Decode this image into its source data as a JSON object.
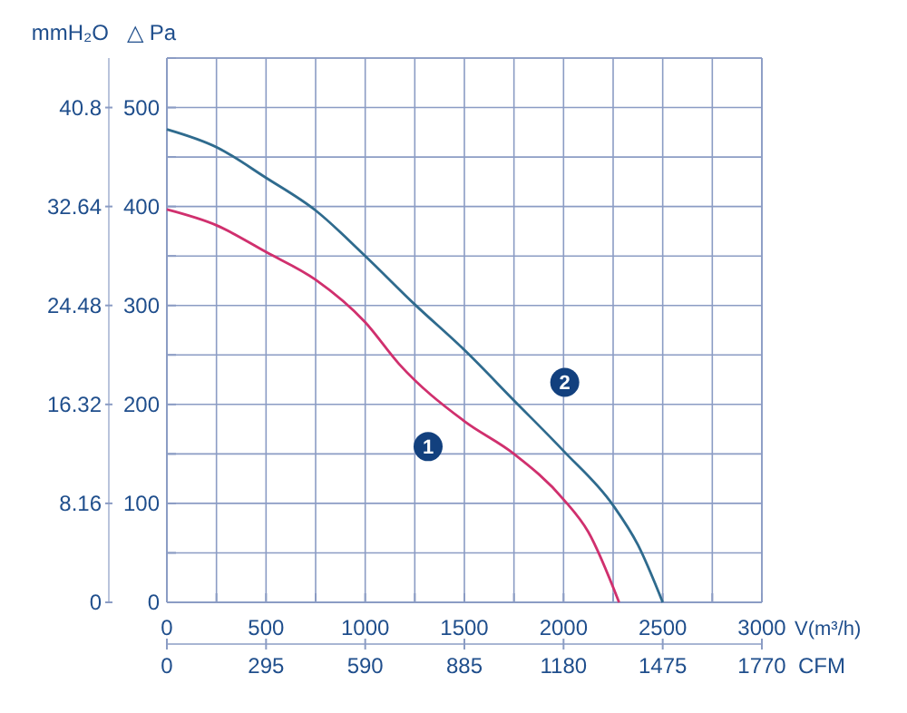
{
  "chart_data": {
    "type": "line",
    "xlabel": "V(m³/h)",
    "ylabel": "△ Pa",
    "y2label": "mmH₂O",
    "x2label": "CFM",
    "xlim": [
      0,
      3000
    ],
    "xticks": [
      0,
      {
        "value": 250,
        "label": null
      },
      500,
      {
        "value": 750,
        "label": null
      },
      1000,
      {
        "value": 1250,
        "label": null
      },
      1500,
      {
        "value": 1750,
        "label": null
      },
      2000,
      {
        "value": 2250,
        "label": null
      },
      2500,
      {
        "value": 2750,
        "label": null
      },
      3000
    ],
    "ylim": [
      0,
      550
    ],
    "yticks": [
      0,
      {
        "value": 50,
        "label": null
      },
      100,
      {
        "value": 150,
        "label": null
      },
      200,
      {
        "value": 250,
        "label": null
      },
      300,
      {
        "value": 350,
        "label": null
      },
      400,
      {
        "value": 450,
        "label": null
      },
      500,
      {
        "value": 550,
        "label": null
      }
    ],
    "y2lim": [
      0,
      44.88
    ],
    "y2ticks": [
      0,
      8.16,
      16.32,
      24.48,
      32.64,
      40.8
    ],
    "x2lim": [
      0,
      1770
    ],
    "x2ticks": [
      0,
      295,
      590,
      885,
      1180,
      1475,
      1770
    ],
    "grid": true,
    "line_style": "solid",
    "series": [
      {
        "name": "1",
        "color": "#d0306e",
        "x": [
          0,
          250,
          500,
          750,
          1000,
          1170,
          1500,
          1750,
          2000,
          2125,
          2280
        ],
        "values": [
          397,
          381,
          354,
          326,
          283,
          241,
          183,
          150,
          104,
          71,
          0
        ]
      },
      {
        "name": "2",
        "color": "#2f6b8e",
        "x": [
          0,
          250,
          500,
          750,
          1000,
          1250,
          1500,
          1750,
          2000,
          2250,
          2375,
          2500
        ],
        "values": [
          478,
          460,
          429,
          396,
          350,
          301,
          255,
          204,
          153,
          98,
          58,
          0
        ]
      }
    ]
  }
}
